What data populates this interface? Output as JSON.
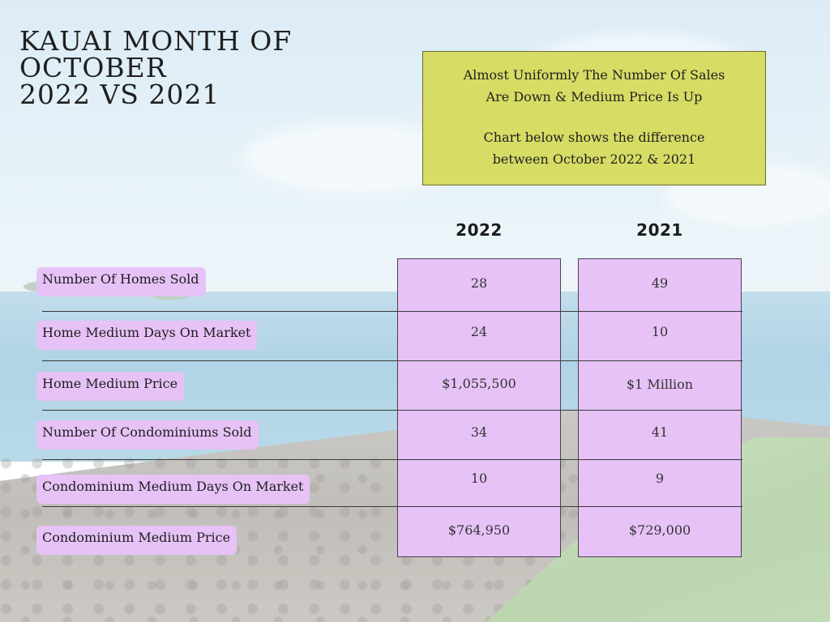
{
  "title": {
    "line1": "KAUAI MONTH OF",
    "line2": "OCTOBER",
    "line3": "2022 VS 2021"
  },
  "note": {
    "para1_line1": "Almost Uniformly The Number Of Sales",
    "para1_line2": "Are Down & Medium Price Is Up",
    "para2_line1": "Chart below shows the difference",
    "para2_line2": "between October 2022 & 2021",
    "color": "#d6dc64"
  },
  "columns": [
    "2022",
    "2021"
  ],
  "rows": [
    {
      "label": "Number Of Homes Sold",
      "v2022": "28",
      "v2021": "49"
    },
    {
      "label": "Home Medium Days On Market",
      "v2022": "24",
      "v2021": "10"
    },
    {
      "label": "Home Medium Price",
      "v2022": "$1,055,500",
      "v2021": "$1 Million"
    },
    {
      "label": "Number Of Condominiums Sold",
      "v2022": "34",
      "v2021": "41"
    },
    {
      "label": "Condominium Medium Days On Market",
      "v2022": "10",
      "v2021": "9"
    },
    {
      "label": "Condominium Medium Price",
      "v2022": "$764,950",
      "v2021": "$729,000"
    }
  ],
  "accent_color": "#e6c2f6"
}
